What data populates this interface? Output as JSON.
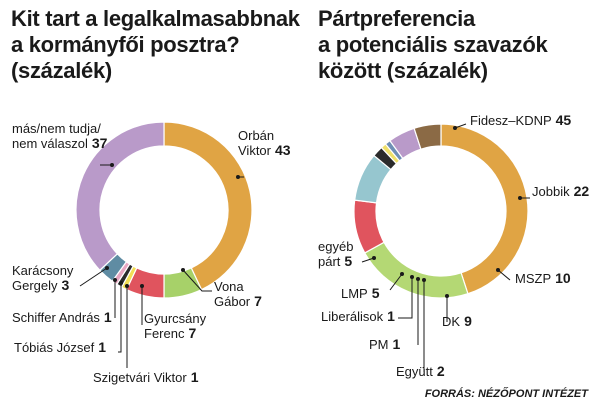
{
  "chart_data": [
    {
      "type": "pie",
      "title": "Kit tart a legalkalmasabbnak\na kormányfői posztra?\n(százalék)",
      "slices": [
        {
          "label": "Orbán Viktor",
          "value": 43,
          "color": "#E0A444"
        },
        {
          "label": "Vona Gábor",
          "value": 7,
          "color": "#A7D169"
        },
        {
          "label": "Gyurcsány Ferenc",
          "value": 7,
          "color": "#E0545E"
        },
        {
          "label": "Szigetvári Viktor",
          "value": 1,
          "color": "#F2DE55"
        },
        {
          "label": "Tóbiás József",
          "value": 1,
          "color": "#2B2B2B"
        },
        {
          "label": "Schiffer András",
          "value": 1,
          "color": "#E8A7C2"
        },
        {
          "label": "Karácsony Gergely",
          "value": 3,
          "color": "#5F8CA3"
        },
        {
          "label": "más/nem tudja/nem válaszol",
          "value": 37,
          "color": "#B99AC9"
        }
      ]
    },
    {
      "type": "pie",
      "title": "Pártpreferencia\na potenciális szavazók\nközött (százalék)",
      "slices": [
        {
          "label": "Fidesz–KDNP",
          "value": 45,
          "color": "#E0A444"
        },
        {
          "label": "Jobbik",
          "value": 22,
          "color": "#B4D874"
        },
        {
          "label": "MSZP",
          "value": 10,
          "color": "#E0545E"
        },
        {
          "label": "DK",
          "value": 9,
          "color": "#96C6CF"
        },
        {
          "label": "Együtt",
          "value": 2,
          "color": "#2B2B2B"
        },
        {
          "label": "PM",
          "value": 1,
          "color": "#EFE06A"
        },
        {
          "label": "Liberálisok",
          "value": 1,
          "color": "#6F8FB5"
        },
        {
          "label": "LMP",
          "value": 5,
          "color": "#B99AC9"
        },
        {
          "label": "egyéb párt",
          "value": 5,
          "color": "#8B6A45"
        }
      ]
    }
  ],
  "labels": {
    "left": [
      {
        "lines": [
          "Orbán",
          "Viktor"
        ],
        "num": "43"
      },
      {
        "lines": [
          "Vona",
          "Gábor"
        ],
        "num": "7"
      },
      {
        "lines": [
          "Gyurcsány",
          "Ferenc"
        ],
        "num": "7"
      },
      {
        "lines": [
          "Szigetvári Viktor"
        ],
        "num": "1"
      },
      {
        "lines": [
          "Tóbiás József"
        ],
        "num": "1"
      },
      {
        "lines": [
          "Schiffer András"
        ],
        "num": "1"
      },
      {
        "lines": [
          "Karácsony",
          "Gergely"
        ],
        "num": "3"
      },
      {
        "lines": [
          "más/nem tudja/",
          "nem válaszol"
        ],
        "num": "37"
      }
    ],
    "right": [
      {
        "lines": [
          "Fidesz–KDNP"
        ],
        "num": "45"
      },
      {
        "lines": [
          "Jobbik"
        ],
        "num": "22"
      },
      {
        "lines": [
          "MSZP"
        ],
        "num": "10"
      },
      {
        "lines": [
          "DK"
        ],
        "num": "9"
      },
      {
        "lines": [
          "Együtt"
        ],
        "num": "2"
      },
      {
        "lines": [
          "PM"
        ],
        "num": "1"
      },
      {
        "lines": [
          "Liberálisok"
        ],
        "num": "1"
      },
      {
        "lines": [
          "LMP"
        ],
        "num": "5"
      },
      {
        "lines": [
          "egyéb",
          "párt"
        ],
        "num": "5"
      }
    ]
  },
  "source": "FORRÁS: NÉZŐPONT INTÉZET"
}
